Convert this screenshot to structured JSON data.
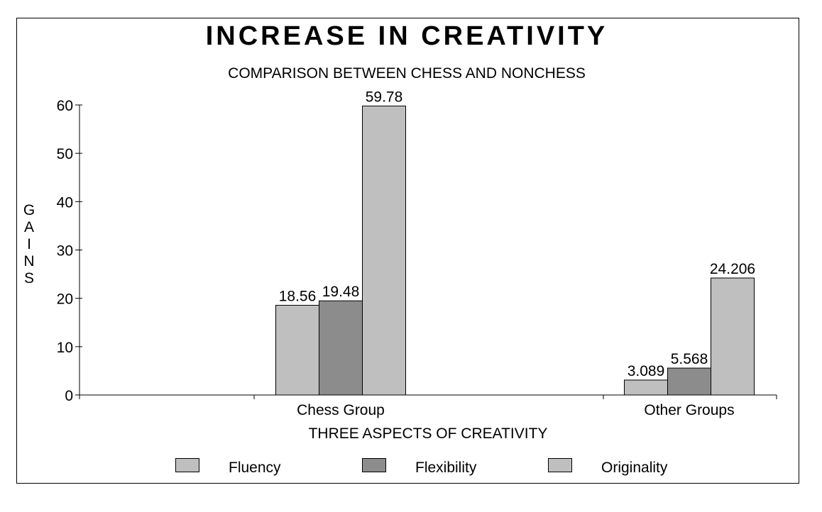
{
  "chart_data": {
    "type": "bar",
    "title": "INCREASE IN CREATIVITY",
    "subtitle": "COMPARISON BETWEEN CHESS AND NONCHESS",
    "xlabel": "THREE ASPECTS OF CREATIVITY",
    "ylabel": "GAINS",
    "categories": [
      "Chess Group",
      "Other Groups"
    ],
    "series": [
      {
        "name": "Fluency",
        "values": [
          18.56,
          3.089
        ],
        "labels": [
          "18.56",
          "3.089"
        ],
        "color": "#bfbfbf"
      },
      {
        "name": "Flexibility",
        "values": [
          19.48,
          5.568
        ],
        "labels": [
          "19.48",
          "5.568"
        ],
        "color": "#8c8c8c"
      },
      {
        "name": "Originality",
        "values": [
          59.78,
          24.206
        ],
        "labels": [
          "59.78",
          "24.206"
        ],
        "color": "#bfbfbf"
      }
    ],
    "ylim": [
      0,
      60
    ],
    "yticks": [
      "0",
      "10",
      "20",
      "30",
      "40",
      "50",
      "60"
    ],
    "grid": false,
    "legend": "bottom"
  }
}
